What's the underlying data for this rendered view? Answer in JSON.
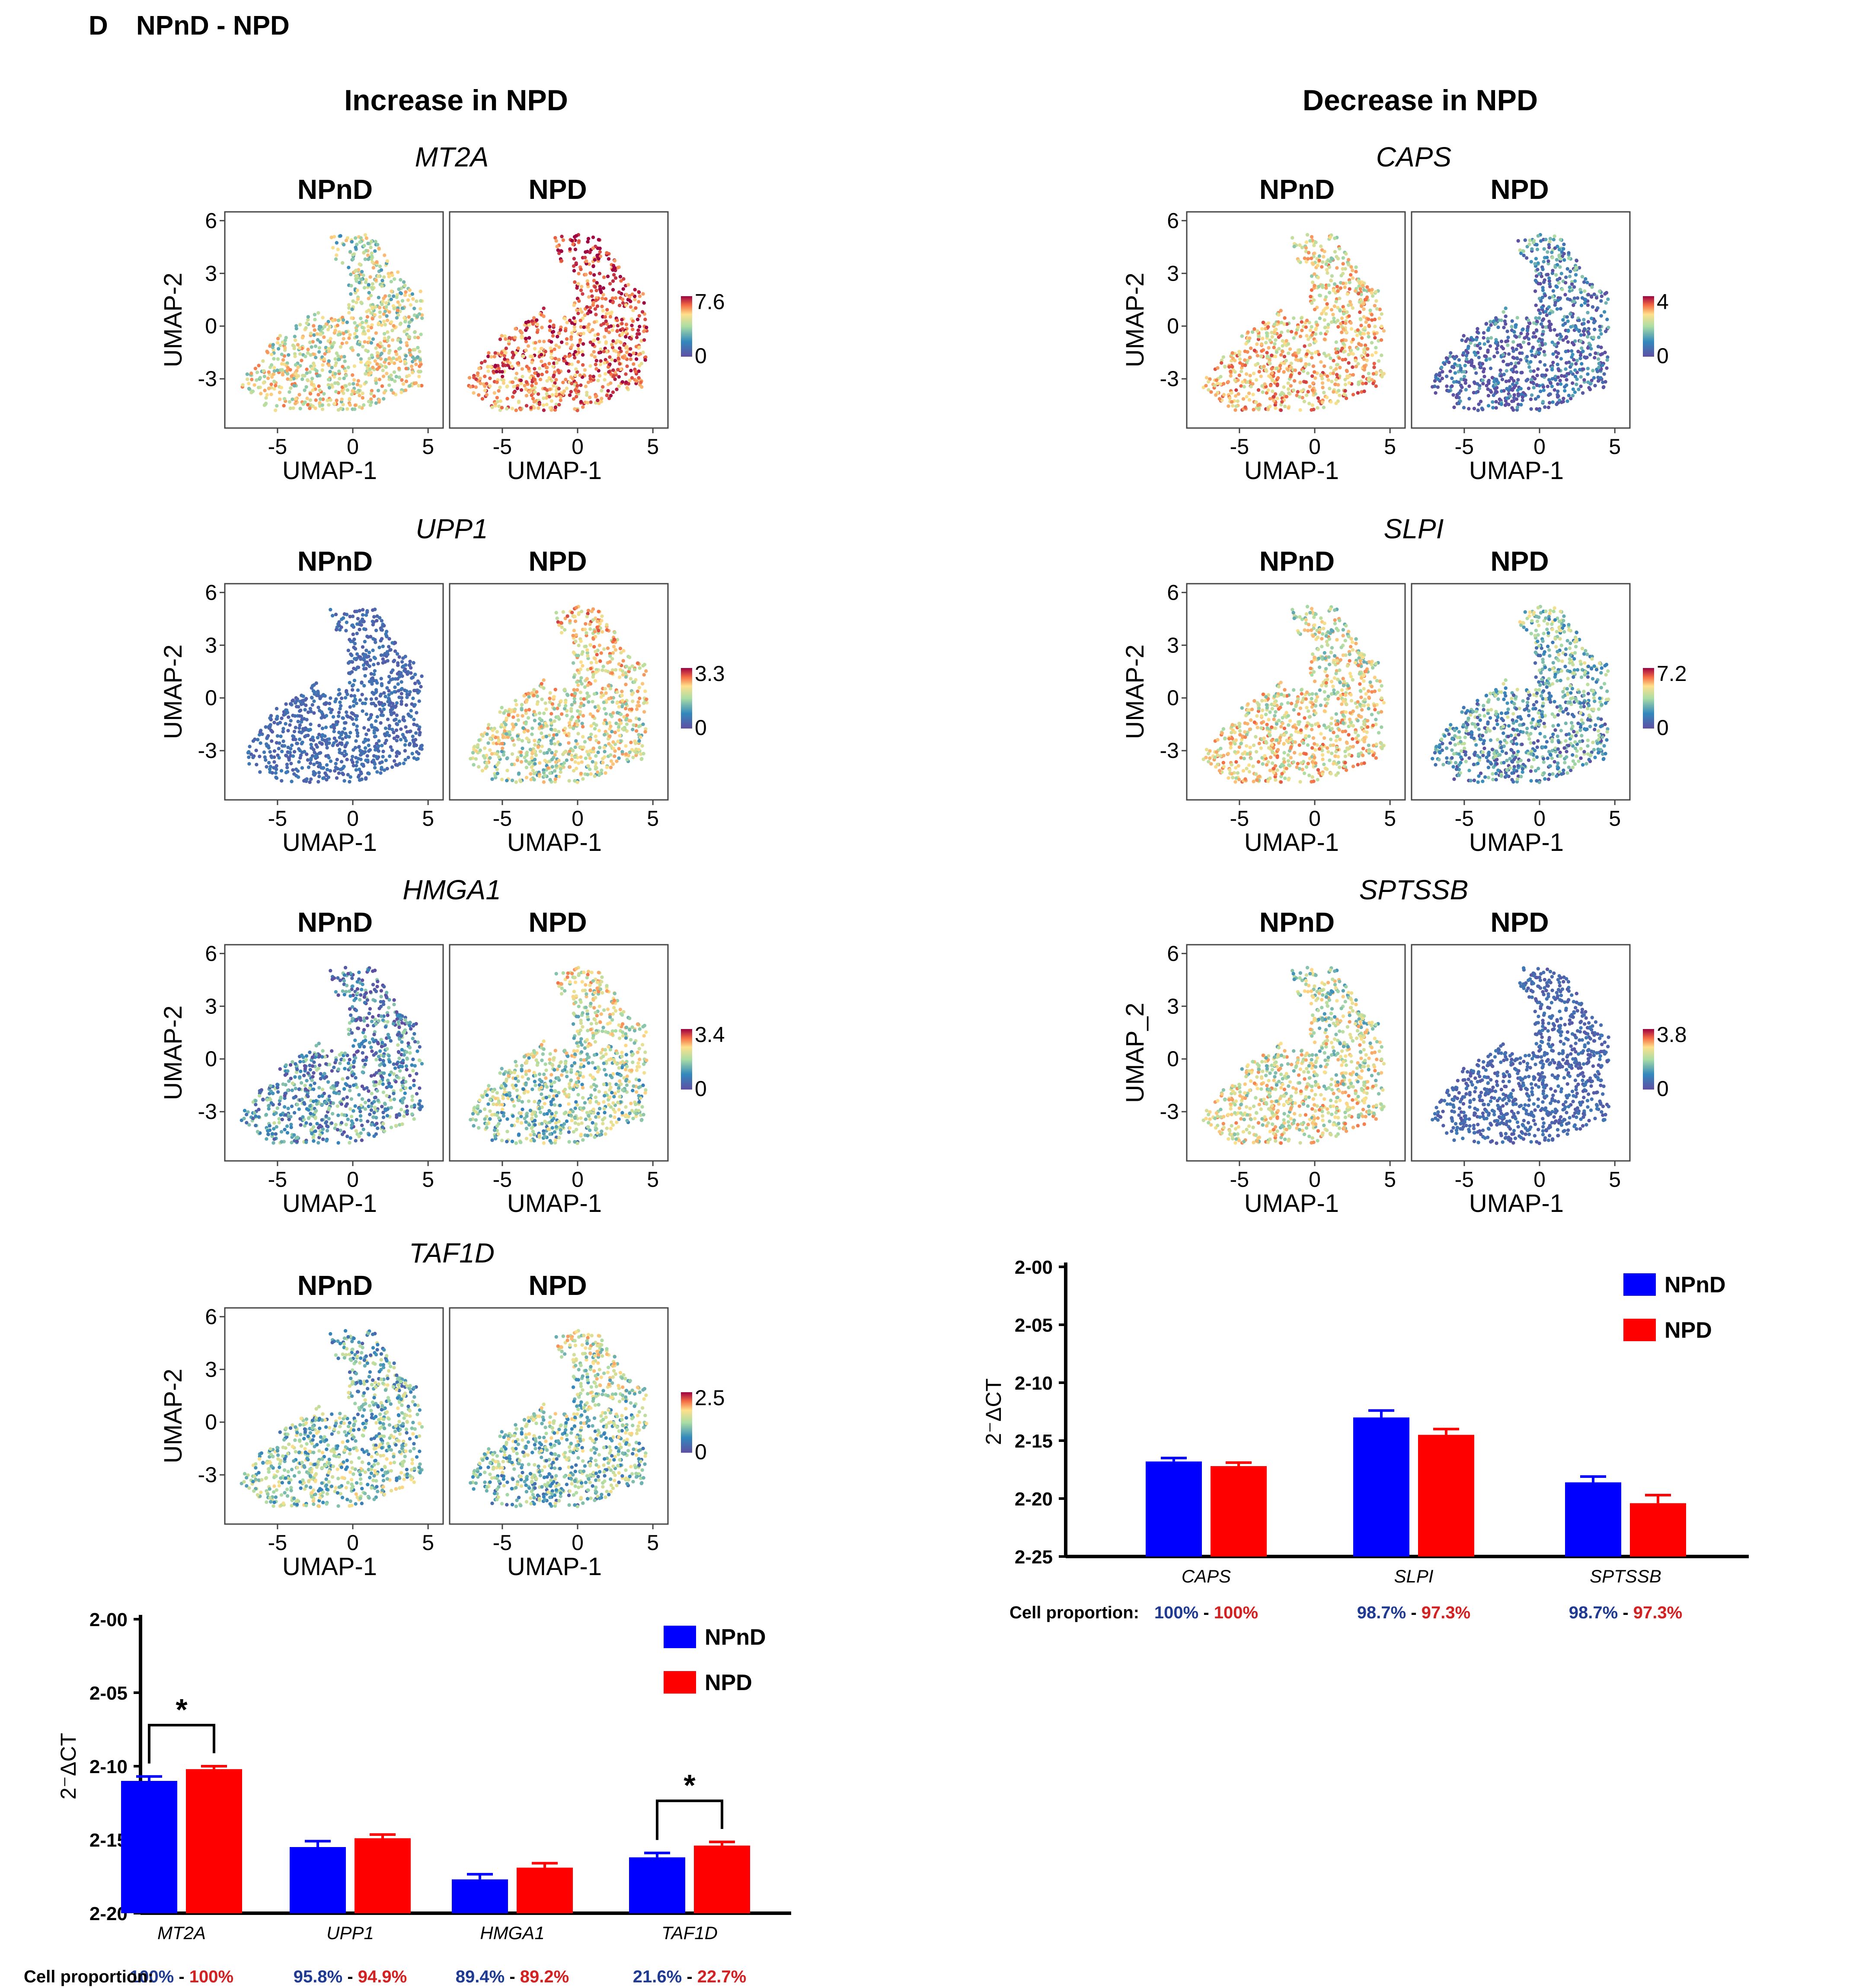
{
  "panel": {
    "letter": "D",
    "title": "NPnD - NPD"
  },
  "colors": {
    "npnd_bar": "#0000FF",
    "npd_bar": "#FF0000",
    "npnd_text": "#1F3A93",
    "npd_text": "#D42020"
  },
  "columns": [
    {
      "title": "Increase in NPD",
      "genes": [
        {
          "gene": "MT2A",
          "scale_max": "7.6",
          "scale_min": "0",
          "npnd_level": 0.5,
          "npd_level": 0.82
        },
        {
          "gene": "UPP1",
          "scale_max": "3.3",
          "scale_min": "0",
          "npnd_level": 0.04,
          "npd_level": 0.55
        },
        {
          "gene": "HMGA1",
          "scale_max": "3.4",
          "scale_min": "0",
          "npnd_level": 0.2,
          "npd_level": 0.45
        },
        {
          "gene": "TAF1D",
          "scale_max": "2.5",
          "scale_min": "0",
          "npnd_level": 0.35,
          "npd_level": 0.4
        }
      ]
    },
    {
      "title": "Decrease in NPD",
      "genes": [
        {
          "gene": "CAPS",
          "scale_max": "4",
          "scale_min": "0",
          "npnd_level": 0.62,
          "npd_level": 0.12
        },
        {
          "gene": "SLPI",
          "scale_max": "7.2",
          "scale_min": "0",
          "npnd_level": 0.55,
          "npd_level": 0.28
        },
        {
          "gene": "SPTSSB",
          "scale_max": "3.8",
          "scale_min": "0",
          "npnd_level": 0.5,
          "npd_level": 0.03
        }
      ]
    }
  ],
  "umap_labels": {
    "group_npnd": "NPnD",
    "group_npd": "NPD",
    "xlabel": "UMAP-1",
    "ylabel": "UMAP-2",
    "ylabel_alt": "UMAP_2",
    "x_ticks": [
      "-5",
      "0",
      "5"
    ],
    "y_ticks": [
      "6",
      "3",
      "0",
      "-3"
    ]
  },
  "chart_data": [
    {
      "type": "bar",
      "ylabel": "2⁻ΔCT",
      "y_ticks": [
        "2-00",
        "2-05",
        "2-10",
        "2-15",
        "2-20"
      ],
      "ylim": [
        -20,
        0
      ],
      "categories": [
        "MT2A",
        "UPP1",
        "HMGA1",
        "TAF1D"
      ],
      "series": [
        {
          "name": "NPnD",
          "values": [
            -11.0,
            -15.5,
            -17.7,
            -16.2
          ],
          "errors": [
            0.3,
            0.4,
            0.35,
            0.3
          ]
        },
        {
          "name": "NPD",
          "values": [
            -10.2,
            -14.9,
            -16.9,
            -15.4
          ],
          "errors": [
            0.2,
            0.25,
            0.3,
            0.25
          ]
        }
      ],
      "significance": [
        {
          "category": "MT2A",
          "label": "*"
        },
        {
          "category": "TAF1D",
          "label": "*"
        }
      ],
      "cell_proportion_label": "Cell proportion:",
      "cell_proportion": [
        {
          "npnd": "100%",
          "npd": "100%"
        },
        {
          "npnd": "95.8%",
          "npd": "94.9%"
        },
        {
          "npnd": "89.4%",
          "npd": "89.2%"
        },
        {
          "npnd": "21.6%",
          "npd": "22.7%"
        }
      ],
      "legend": [
        "NPnD",
        "NPD"
      ],
      "legend_position": "top-right"
    },
    {
      "type": "bar",
      "ylabel": "2⁻ΔCT",
      "y_ticks": [
        "2-00",
        "2-05",
        "2-10",
        "2-15",
        "2-20",
        "2-25"
      ],
      "ylim": [
        -25,
        0
      ],
      "categories": [
        "CAPS",
        "SLPI",
        "SPTSSB"
      ],
      "series": [
        {
          "name": "NPnD",
          "values": [
            -16.8,
            -13.0,
            -18.6
          ],
          "errors": [
            0.3,
            0.6,
            0.5
          ]
        },
        {
          "name": "NPD",
          "values": [
            -17.2,
            -14.5,
            -20.4
          ],
          "errors": [
            0.3,
            0.5,
            0.7
          ]
        }
      ],
      "cell_proportion_label": "Cell proportion:",
      "cell_proportion": [
        {
          "npnd": "100%",
          "npd": "100%"
        },
        {
          "npnd": "98.7%",
          "npd": "97.3%"
        },
        {
          "npnd": "98.7%",
          "npd": "97.3%"
        }
      ],
      "legend": [
        "NPnD",
        "NPD"
      ],
      "legend_position": "top-right"
    }
  ]
}
